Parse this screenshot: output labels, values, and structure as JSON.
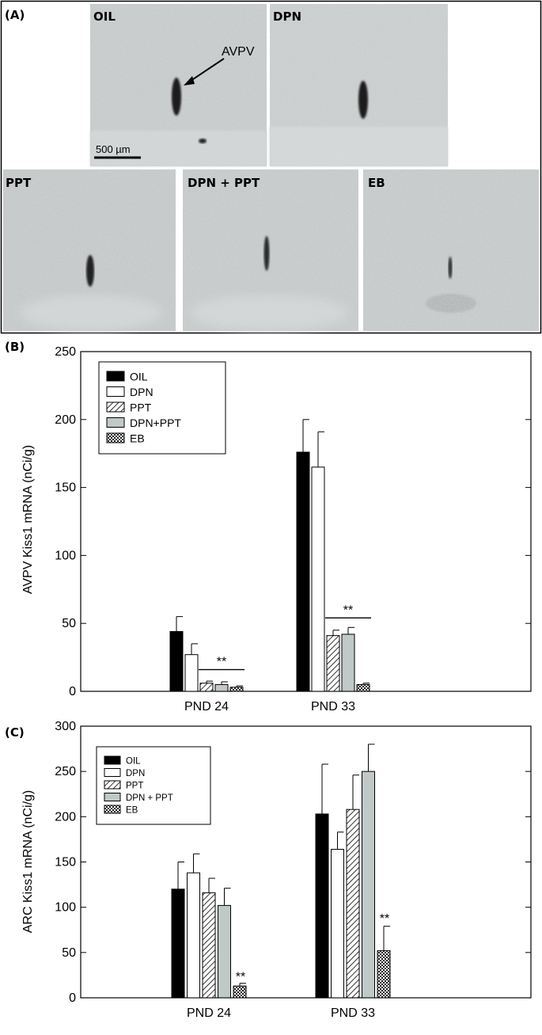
{
  "panel_a": {
    "label": "(A)",
    "arrow_label": "AVPV",
    "scale_bar_label": "500 µm",
    "images": [
      {
        "label": "OIL"
      },
      {
        "label": "DPN"
      },
      {
        "label": "PPT"
      },
      {
        "label": "DPN + PPT"
      },
      {
        "label": "EB"
      }
    ]
  },
  "colors": {
    "OIL": "#000000",
    "DPN": "#ffffff",
    "PPT": "#ffffff",
    "DPN+PPT": "#c0c8c8",
    "EB": "#333333",
    "tissue_background": "#bcc0c0"
  },
  "chart_data": [
    {
      "type": "bar",
      "panel_label": "(B)",
      "ylabel": "AVPV Kiss1 mRNA (nCi/g)",
      "ylim": [
        0,
        250
      ],
      "yticks": [
        "0",
        "50",
        "100",
        "150",
        "200",
        "250"
      ],
      "categories": [
        "PND 24",
        "PND 33"
      ],
      "legend_position": "top-left",
      "series": [
        {
          "name": "OIL",
          "fill": "solid",
          "values": [
            44,
            176
          ],
          "errors": [
            11,
            24
          ]
        },
        {
          "name": "DPN",
          "fill": "open",
          "values": [
            27,
            165
          ],
          "errors": [
            8,
            26
          ]
        },
        {
          "name": "PPT",
          "fill": "hatched",
          "values": [
            6,
            41
          ],
          "errors": [
            1.5,
            4
          ]
        },
        {
          "name": "DPN+PPT",
          "fill": "gray",
          "values": [
            5,
            42
          ],
          "errors": [
            2,
            5
          ]
        },
        {
          "name": "EB",
          "fill": "crosshatch",
          "values": [
            3,
            5
          ],
          "errors": [
            1,
            1
          ]
        }
      ],
      "significance": [
        {
          "category": 0,
          "from_series": 2,
          "to_series": 4,
          "y": 16,
          "text": "**"
        },
        {
          "category": 1,
          "from_series": 2,
          "to_series": 4,
          "y": 54,
          "text": "**"
        }
      ]
    },
    {
      "type": "bar",
      "panel_label": "(C)",
      "ylabel": "ARC Kiss1 mRNA (nCi/g)",
      "ylim": [
        0,
        300
      ],
      "yticks": [
        "0",
        "50",
        "100",
        "150",
        "200",
        "250",
        "300"
      ],
      "categories": [
        "PND 24",
        "PND 33"
      ],
      "legend_position": "top-left",
      "series": [
        {
          "name": "OIL",
          "fill": "solid",
          "values": [
            120,
            203
          ],
          "errors": [
            30,
            55
          ]
        },
        {
          "name": "DPN",
          "fill": "open",
          "values": [
            138,
            164
          ],
          "errors": [
            21,
            19
          ]
        },
        {
          "name": "PPT",
          "fill": "hatched",
          "values": [
            116,
            208
          ],
          "errors": [
            16,
            38
          ]
        },
        {
          "name": "DPN + PPT",
          "fill": "gray",
          "values": [
            102,
            250
          ],
          "errors": [
            19,
            30
          ]
        },
        {
          "name": "EB",
          "fill": "crosshatch",
          "values": [
            13,
            52
          ],
          "errors": [
            3,
            27
          ]
        }
      ],
      "significance": [
        {
          "category": 0,
          "series": 4,
          "y": 19,
          "text": "**"
        },
        {
          "category": 1,
          "series": 4,
          "y": 83,
          "text": "**"
        }
      ]
    }
  ]
}
